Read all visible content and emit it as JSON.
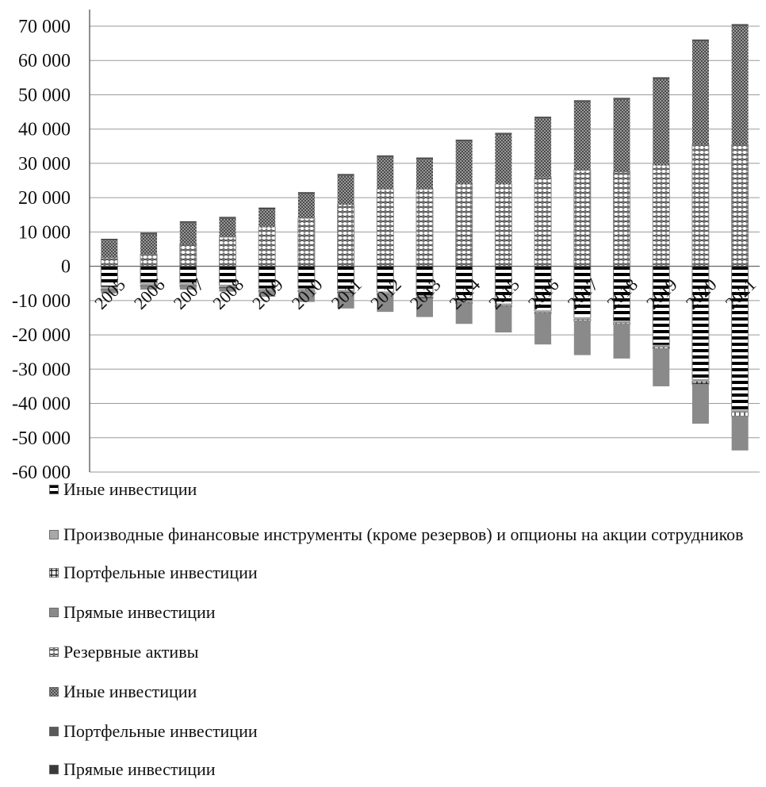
{
  "chart_data": {
    "type": "bar",
    "stacked": true,
    "categories": [
      "2005",
      "2006",
      "2007",
      "2008",
      "2009",
      "2010",
      "2011",
      "2012",
      "2013",
      "2014",
      "2015",
      "2016",
      "2017",
      "2018",
      "2019",
      "2020",
      "2021"
    ],
    "ylim": [
      -60000,
      70000
    ],
    "yticks": [
      70000,
      60000,
      50000,
      40000,
      30000,
      20000,
      10000,
      0,
      -10000,
      -20000,
      -30000,
      -40000,
      -50000,
      -60000
    ],
    "ytick_labels": [
      "70 000",
      "60 000",
      "50 000",
      "40 000",
      "30 000",
      "20 000",
      "10 000",
      "0",
      "-10 000",
      "-20 000",
      "-30 000",
      "-40 000",
      "-50 000",
      "-60 000"
    ],
    "grid": true,
    "legend_position": "bottom",
    "series": [
      {
        "name": "Иные инвестиции",
        "pattern": "horizontal-stripes",
        "values": [
          -6000,
          -5000,
          -5000,
          -5500,
          -6500,
          -6500,
          -7000,
          -7500,
          -8500,
          -10000,
          -11000,
          -13000,
          -15000,
          -16000,
          -23000,
          -33000,
          -42000
        ]
      },
      {
        "name": "Производные финансовые инструменты (кроме резервов) и опционы на акции сотрудников",
        "pattern": "solid-light",
        "values": [
          -700,
          -600,
          -600,
          -600,
          -600,
          -600,
          -500,
          -500,
          -500,
          -500,
          -500,
          -500,
          -500,
          -500,
          -500,
          -500,
          -500
        ]
      },
      {
        "name": "Портфельные инвестиции",
        "pattern": "grid-hatch",
        "values": [
          -200,
          -200,
          -200,
          -300,
          -300,
          -300,
          -300,
          -300,
          -300,
          -300,
          -300,
          -300,
          -400,
          -400,
          -500,
          -900,
          -1200
        ]
      },
      {
        "name": "Прямые инвестиции",
        "pattern": "solid-gray",
        "values": [
          -1000,
          -1000,
          -1000,
          -1000,
          -1500,
          -3000,
          -4500,
          -5000,
          -5500,
          -6000,
          -7500,
          -9000,
          -10000,
          -10000,
          -11000,
          -11500,
          -10000
        ]
      },
      {
        "name": "Резервные активы",
        "pattern": "diamond-check",
        "values": [
          2500,
          3500,
          6500,
          8500,
          11500,
          14000,
          18000,
          22500,
          22500,
          24000,
          24000,
          26000,
          28000,
          27500,
          29500,
          35500,
          35500
        ]
      },
      {
        "name": "Иные инвестиции",
        "pattern": "dense-check",
        "values": [
          5000,
          5700,
          6000,
          5300,
          5000,
          7000,
          8300,
          9200,
          8600,
          12300,
          14300,
          17000,
          19800,
          21000,
          25000,
          30000,
          34500
        ]
      },
      {
        "name": "Портфельные инвестиции",
        "pattern": "solid-dark-gray",
        "values": [
          200,
          300,
          300,
          300,
          300,
          300,
          300,
          300,
          300,
          300,
          300,
          300,
          300,
          300,
          300,
          300,
          300
        ]
      },
      {
        "name": "Прямые инвестиции",
        "pattern": "solid-dark",
        "values": [
          300,
          300,
          300,
          300,
          300,
          300,
          300,
          300,
          300,
          300,
          300,
          300,
          300,
          300,
          300,
          300,
          300
        ]
      }
    ]
  }
}
